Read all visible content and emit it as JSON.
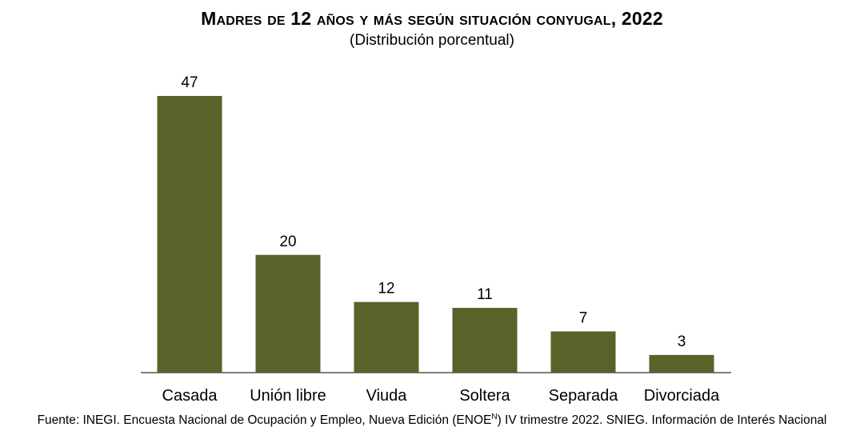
{
  "header": {
    "title": "Madres de 12 años y más según situación conyugal, 2022",
    "subtitle": "(Distribución porcentual)"
  },
  "chart_data": {
    "type": "bar",
    "title": "Madres de 12 años y más según situación conyugal, 2022",
    "subtitle": "(Distribución porcentual)",
    "categories": [
      "Casada",
      "Unión libre",
      "Viuda",
      "Soltera",
      "Separada",
      "Divorciada"
    ],
    "values": [
      47,
      20,
      12,
      11,
      7,
      3
    ],
    "data_labels": [
      "47",
      "20",
      "12",
      "11",
      "7",
      "3"
    ],
    "xlabel": "",
    "ylabel": "",
    "ylim": [
      0,
      47
    ],
    "grid": false,
    "legend": "none",
    "bar_color": "#576328"
  },
  "footer": {
    "source_prefix": "Fuente: INEGI. Encuesta Nacional de Ocupación y Empleo, Nueva Edición (ENOE",
    "source_superscript": "N",
    "source_suffix": ") IV trimestre 2022. SNIEG. Información de Interés Nacional"
  }
}
